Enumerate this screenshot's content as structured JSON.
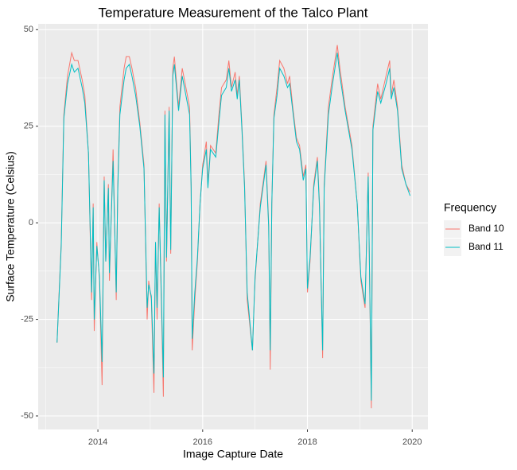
{
  "chart_data": {
    "type": "line",
    "title": "Temperature Measurement of the Talco Plant",
    "x_label": "Image Capture Date",
    "y_label": "Surface Temperature (Celsius)",
    "legend_title": "Frequency",
    "legend_position": "right",
    "grid": true,
    "xlim": [
      2012.86,
      2020.3
    ],
    "xticks": [
      2014,
      2016,
      2018,
      2020
    ],
    "ylim": [
      -53.5,
      51.5
    ],
    "yticks": [
      -50,
      -25,
      0,
      25,
      50
    ],
    "x": [
      2013.22,
      2013.3,
      2013.35,
      2013.42,
      2013.5,
      2013.55,
      2013.62,
      2013.7,
      2013.75,
      2013.82,
      2013.88,
      2013.91,
      2013.93,
      2013.98,
      2014.03,
      2014.08,
      2014.12,
      2014.15,
      2014.2,
      2014.22,
      2014.29,
      2014.35,
      2014.38,
      2014.42,
      2014.5,
      2014.54,
      2014.6,
      2014.65,
      2014.72,
      2014.8,
      2014.88,
      2014.94,
      2014.97,
      2015.02,
      2015.07,
      2015.1,
      2015.13,
      2015.17,
      2015.25,
      2015.28,
      2015.31,
      2015.36,
      2015.39,
      2015.43,
      2015.46,
      2015.54,
      2015.61,
      2015.68,
      2015.75,
      2015.78,
      2015.8,
      2015.85,
      2015.9,
      2015.95,
      2016.0,
      2016.07,
      2016.1,
      2016.15,
      2016.25,
      2016.31,
      2016.36,
      2016.45,
      2016.5,
      2016.55,
      2016.62,
      2016.66,
      2016.7,
      2016.75,
      2016.8,
      2016.85,
      2016.95,
      2017.0,
      2017.1,
      2017.21,
      2017.26,
      2017.29,
      2017.32,
      2017.36,
      2017.42,
      2017.47,
      2017.55,
      2017.62,
      2017.66,
      2017.72,
      2017.79,
      2017.85,
      2017.92,
      2017.97,
      2018.0,
      2018.05,
      2018.12,
      2018.19,
      2018.23,
      2018.29,
      2018.32,
      2018.4,
      2018.48,
      2018.57,
      2018.62,
      2018.72,
      2018.85,
      2018.95,
      2019.02,
      2019.1,
      2019.16,
      2019.22,
      2019.25,
      2019.34,
      2019.4,
      2019.5,
      2019.57,
      2019.6,
      2019.65,
      2019.72,
      2019.8,
      2019.88,
      2019.96
    ],
    "series": [
      {
        "name": "Band 10",
        "color": "#F8766D",
        "values": [
          -31,
          -5,
          28,
          38,
          44,
          42,
          42,
          37,
          33,
          18,
          -20,
          5,
          -28,
          -5,
          -15,
          -42,
          12,
          -10,
          10,
          -15,
          19,
          -20,
          10,
          30,
          40,
          43,
          43,
          40,
          35,
          26,
          15,
          -25,
          -15,
          -20,
          -44,
          -5,
          -25,
          5,
          -45,
          29,
          -10,
          30,
          -8,
          40,
          43,
          30,
          40,
          35,
          30,
          10,
          -33,
          -20,
          -10,
          5,
          15,
          21,
          10,
          20,
          18,
          28,
          35,
          37,
          42,
          35,
          39,
          33,
          38,
          25,
          10,
          -20,
          -33,
          -15,
          5,
          16,
          0,
          -38,
          5,
          28,
          35,
          42,
          40,
          36,
          38,
          30,
          22,
          20,
          12,
          15,
          -18,
          -10,
          10,
          17,
          5,
          -35,
          10,
          30,
          38,
          46,
          40,
          30,
          20,
          5,
          -15,
          -22,
          13,
          -48,
          25,
          36,
          32,
          38,
          42,
          33,
          37,
          30,
          15,
          10,
          8
        ]
      },
      {
        "name": "Band 11",
        "color": "#00BFC4",
        "values": [
          -31,
          -6,
          27,
          36,
          41,
          39,
          40,
          35,
          31,
          18,
          -18,
          4,
          -25,
          -6,
          -14,
          -36,
          11,
          -10,
          9,
          -13,
          16,
          -18,
          9,
          28,
          37,
          40,
          41,
          38,
          33,
          25,
          14,
          -22,
          -16,
          -19,
          -39,
          -5,
          -22,
          4,
          -40,
          28,
          -9,
          29,
          -7,
          38,
          41,
          29,
          38,
          33,
          28,
          9,
          -30,
          -18,
          -9,
          5,
          14,
          19,
          9,
          19,
          17,
          26,
          33,
          35,
          40,
          34,
          37,
          32,
          37,
          24,
          9,
          -18,
          -33,
          -14,
          4,
          15,
          -1,
          -33,
          5,
          27,
          33,
          40,
          38,
          35,
          36,
          29,
          21,
          19,
          11,
          14,
          -17,
          -9,
          9,
          16,
          4,
          -33,
          9,
          28,
          36,
          44,
          38,
          29,
          19,
          5,
          -14,
          -21,
          12,
          -46,
          24,
          34,
          31,
          36,
          40,
          32,
          35,
          29,
          14,
          10,
          7
        ]
      }
    ]
  }
}
